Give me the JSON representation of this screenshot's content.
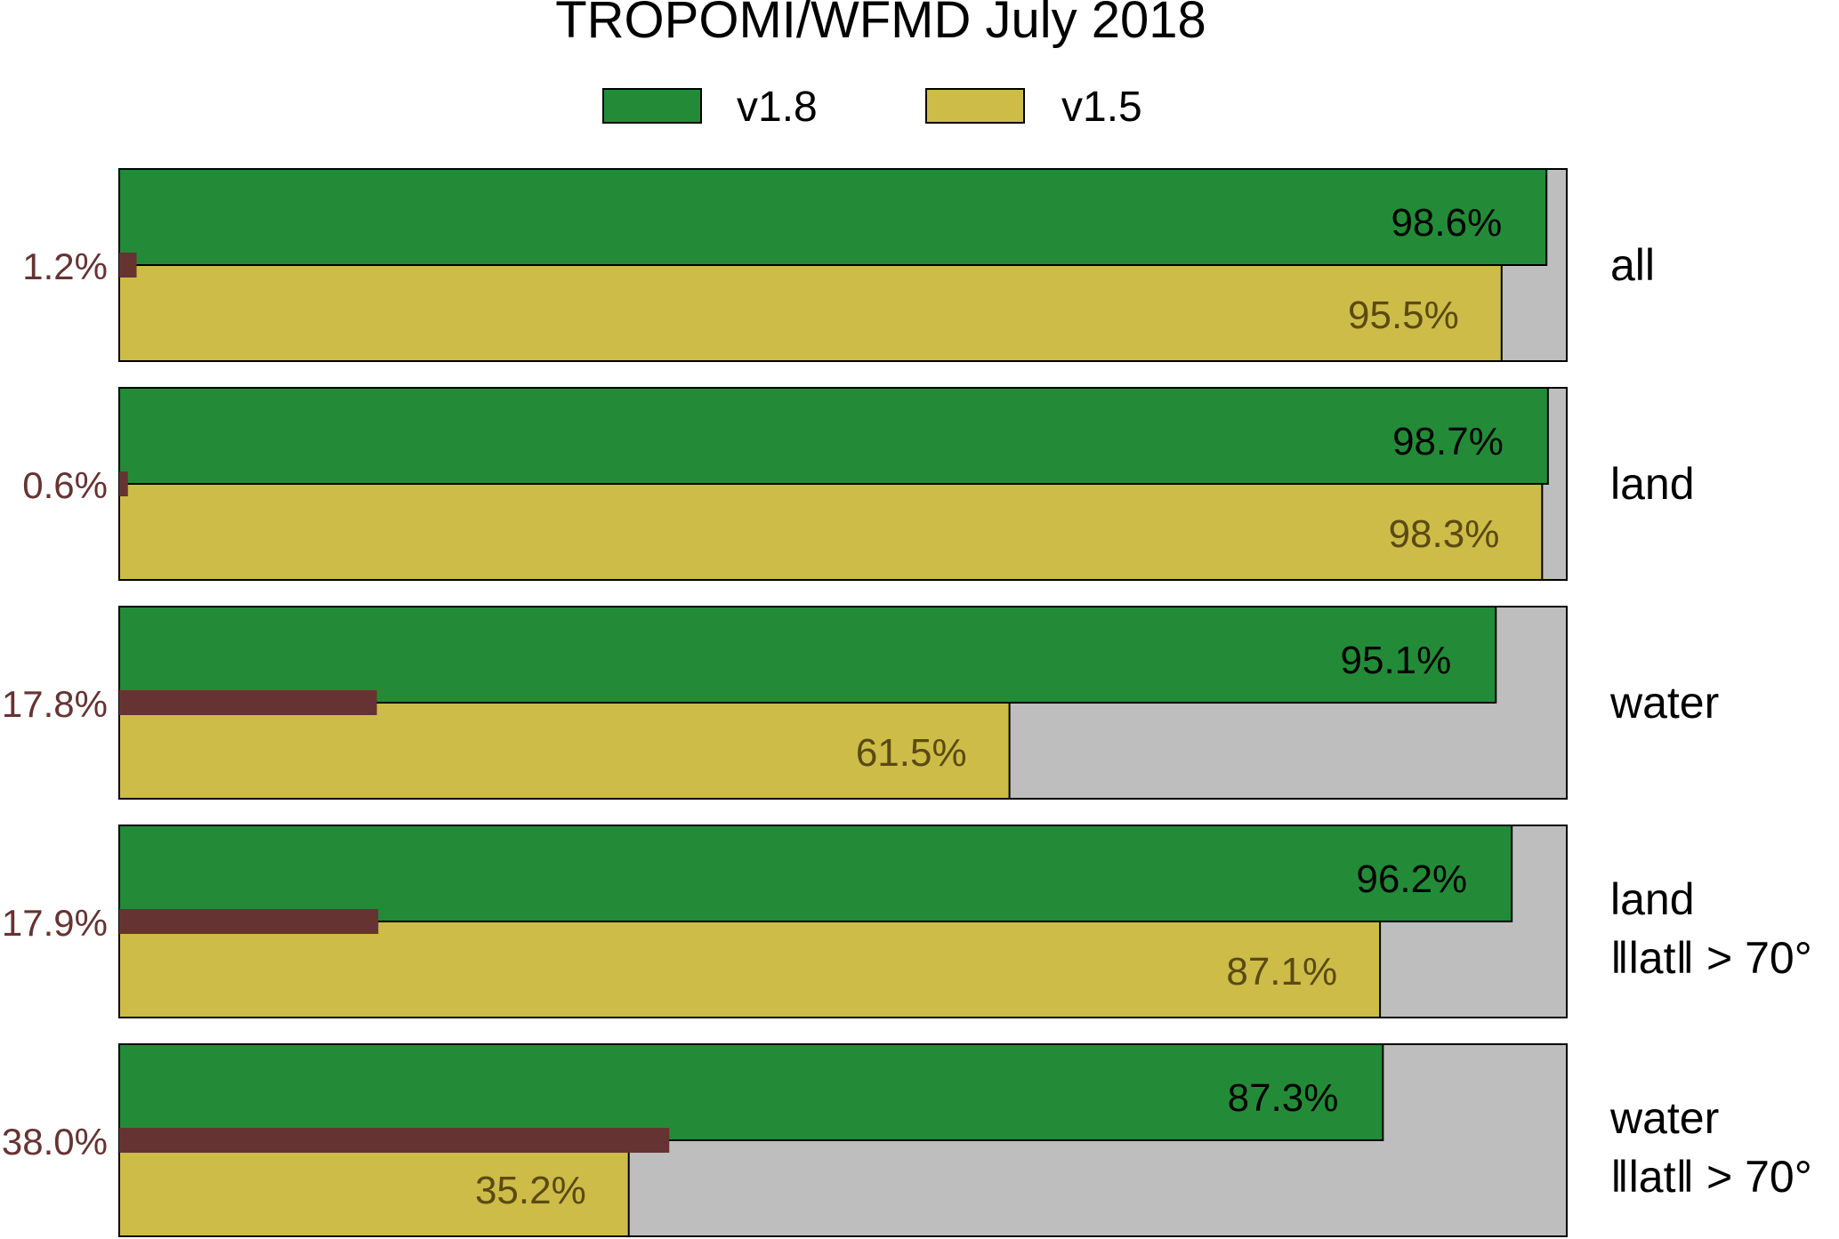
{
  "chart_data": {
    "type": "bar",
    "orientation": "horizontal",
    "title": "TROPOMI/WFMD July 2018",
    "xlim": [
      0,
      100
    ],
    "grid": false,
    "legend": {
      "placement": "top-center"
    },
    "series": [
      {
        "name": "v1.8",
        "color": "#238b37",
        "values": [
          98.6,
          98.7,
          95.1,
          96.2,
          87.3
        ],
        "labels": [
          "98.6%",
          "98.7%",
          "95.1%",
          "96.2%",
          "87.3%"
        ],
        "label_color": "#000000"
      },
      {
        "name": "v1.5",
        "color": "#cdbc47",
        "values": [
          95.5,
          98.3,
          61.5,
          87.1,
          35.2
        ],
        "labels": [
          "95.5%",
          "98.3%",
          "61.5%",
          "87.1%",
          "35.2%"
        ],
        "label_color": "#5a4a12"
      }
    ],
    "difference": {
      "color": "#663333",
      "values": [
        1.2,
        0.6,
        17.8,
        17.9,
        38.0
      ],
      "labels": [
        "1.2%",
        "0.6%",
        "17.8%",
        "17.9%",
        "38.0%"
      ]
    },
    "categories": [
      {
        "line1": "all",
        "line2": ""
      },
      {
        "line1": "land",
        "line2": ""
      },
      {
        "line1": "water",
        "line2": ""
      },
      {
        "line1": "land",
        "line2": "‖lat‖ > 70°"
      },
      {
        "line1": "water",
        "line2": "‖lat‖ > 70°"
      }
    ],
    "background_color": "#bebebe"
  }
}
